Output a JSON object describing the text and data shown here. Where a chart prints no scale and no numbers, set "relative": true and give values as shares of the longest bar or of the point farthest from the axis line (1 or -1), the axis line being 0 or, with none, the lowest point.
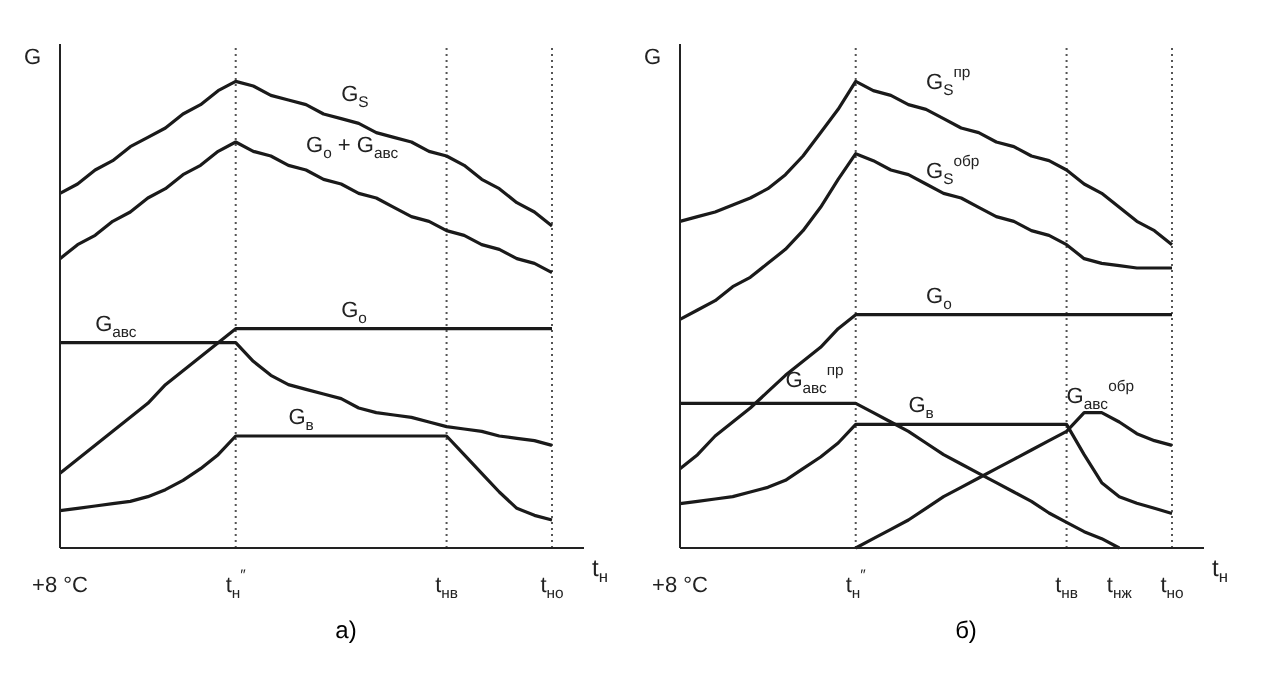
{
  "chart_data": [
    {
      "type": "line",
      "relative": true,
      "ylabel": "G",
      "xlabel": "t$_{н}$",
      "categories": [
        "+8 °C",
        null,
        null,
        null,
        null,
        null,
        null,
        null,
        null,
        null,
        "t$_{н}$$^{″}$",
        null,
        null,
        null,
        null,
        null,
        null,
        null,
        null,
        null,
        null,
        null,
        "t$_{нв}$",
        null,
        null,
        null,
        null,
        null,
        "t$_{но}$"
      ],
      "ref_lines": [
        {
          "axis": "x",
          "value": "t$_{н}$$^{″}$",
          "line_style": "dotted"
        },
        {
          "axis": "x",
          "value": "t$_{нв}$",
          "line_style": "dotted"
        },
        {
          "axis": "x",
          "value": "t$_{но}$",
          "line_style": "dotted"
        }
      ],
      "series": [
        {
          "name": "G$_{S}$",
          "color": "#1a1a1a",
          "values": [
            0.76,
            0.78,
            0.81,
            0.83,
            0.86,
            0.88,
            0.9,
            0.93,
            0.95,
            0.98,
            1,
            0.99,
            0.97,
            0.96,
            0.95,
            0.93,
            0.92,
            0.91,
            0.89,
            0.88,
            0.87,
            0.85,
            0.84,
            0.82,
            0.79,
            0.77,
            0.74,
            0.72,
            0.69
          ]
        },
        {
          "name": "G$_{о}$ + G$_{авс}$",
          "color": "#1a1a1a",
          "values": [
            0.62,
            0.65,
            0.67,
            0.7,
            0.72,
            0.75,
            0.77,
            0.8,
            0.82,
            0.85,
            0.87,
            0.85,
            0.84,
            0.82,
            0.81,
            0.79,
            0.78,
            0.76,
            0.75,
            0.73,
            0.71,
            0.7,
            0.68,
            0.67,
            0.65,
            0.64,
            0.62,
            0.61,
            0.59
          ]
        },
        {
          "name": "G$_{о}$",
          "color": "#1a1a1a",
          "values": [
            0.16,
            0.19,
            0.22,
            0.25,
            0.28,
            0.31,
            0.35,
            0.38,
            0.41,
            0.44,
            0.47,
            0.47,
            0.47,
            0.47,
            0.47,
            0.47,
            0.47,
            0.47,
            0.47,
            0.47,
            0.47,
            0.47,
            0.47,
            0.47,
            0.47,
            0.47,
            0.47,
            0.47,
            0.47
          ]
        },
        {
          "name": "G$_{авс}$",
          "color": "#1a1a1a",
          "values": [
            0.44,
            0.44,
            0.44,
            0.44,
            0.44,
            0.44,
            0.44,
            0.44,
            0.44,
            0.44,
            0.44,
            0.4,
            0.37,
            0.35,
            0.34,
            0.33,
            0.32,
            0.3,
            0.29,
            0.285,
            0.28,
            0.27,
            0.26,
            0.255,
            0.25,
            0.24,
            0.235,
            0.23,
            0.22
          ]
        },
        {
          "name": "G$_{в}$",
          "color": "#1a1a1a",
          "values": [
            0.08,
            0.085,
            0.09,
            0.095,
            0.1,
            0.11,
            0.125,
            0.145,
            0.17,
            0.2,
            0.24,
            0.24,
            0.24,
            0.24,
            0.24,
            0.24,
            0.24,
            0.24,
            0.24,
            0.24,
            0.24,
            0.24,
            0.24,
            0.2,
            0.16,
            0.12,
            0.085,
            0.07,
            0.06
          ]
        }
      ],
      "annotations": [
        "а)"
      ]
    },
    {
      "type": "line",
      "relative": true,
      "ylabel": "G",
      "xlabel": "t$_{н}$",
      "categories": [
        "+8 °C",
        null,
        null,
        null,
        null,
        null,
        null,
        null,
        null,
        null,
        "t$_{н}$$^{″}$",
        null,
        null,
        null,
        null,
        null,
        null,
        null,
        null,
        null,
        null,
        null,
        "t$_{нв}$",
        null,
        null,
        "t$_{нж}$",
        null,
        null,
        "t$_{но}$"
      ],
      "ref_lines": [
        {
          "axis": "x",
          "value": "t$_{н}$$^{″}$",
          "line_style": "dotted"
        },
        {
          "axis": "x",
          "value": "t$_{нв}$",
          "line_style": "dotted"
        },
        {
          "axis": "x",
          "value": "t$_{но}$",
          "line_style": "dotted"
        }
      ],
      "series": [
        {
          "name": "G$_{S}$$^{пр}$",
          "color": "#1a1a1a",
          "values": [
            0.7,
            0.71,
            0.72,
            0.735,
            0.75,
            0.77,
            0.8,
            0.84,
            0.89,
            0.94,
            1,
            0.98,
            0.97,
            0.95,
            0.94,
            0.92,
            0.9,
            0.89,
            0.87,
            0.86,
            0.84,
            0.83,
            0.81,
            0.78,
            0.76,
            0.73,
            0.7,
            0.68,
            0.65
          ]
        },
        {
          "name": "G$_{S}$$^{обр}$",
          "color": "#1a1a1a",
          "values": [
            0.49,
            0.51,
            0.53,
            0.56,
            0.58,
            0.61,
            0.64,
            0.68,
            0.73,
            0.79,
            0.845,
            0.83,
            0.81,
            0.8,
            0.78,
            0.76,
            0.75,
            0.73,
            0.71,
            0.7,
            0.68,
            0.67,
            0.65,
            0.62,
            0.61,
            0.605,
            0.6,
            0.6,
            0.6
          ]
        },
        {
          "name": "G$_{о}$",
          "color": "#1a1a1a",
          "values": [
            0.17,
            0.2,
            0.24,
            0.27,
            0.3,
            0.335,
            0.37,
            0.4,
            0.43,
            0.47,
            0.5,
            0.5,
            0.5,
            0.5,
            0.5,
            0.5,
            0.5,
            0.5,
            0.5,
            0.5,
            0.5,
            0.5,
            0.5,
            0.5,
            0.5,
            0.5,
            0.5,
            0.5,
            0.5
          ]
        },
        {
          "name": "G$_{авс}$$^{пр}$",
          "color": "#1a1a1a",
          "values": [
            0.31,
            0.31,
            0.31,
            0.31,
            0.31,
            0.31,
            0.31,
            0.31,
            0.31,
            0.31,
            0.31,
            0.29,
            0.27,
            0.25,
            0.225,
            0.2,
            0.18,
            0.16,
            0.14,
            0.12,
            0.1,
            0.075,
            0.055,
            0.035,
            0.02,
            0,
            null,
            null,
            null
          ]
        },
        {
          "name": "G$_{в}$",
          "color": "#1a1a1a",
          "values": [
            0.095,
            0.1,
            0.105,
            0.11,
            0.12,
            0.13,
            0.145,
            0.17,
            0.195,
            0.225,
            0.265,
            0.265,
            0.265,
            0.265,
            0.265,
            0.265,
            0.265,
            0.265,
            0.265,
            0.265,
            0.265,
            0.265,
            0.265,
            0.2,
            0.14,
            0.11,
            0.096,
            0.085,
            0.074
          ]
        },
        {
          "name": "G$_{авс}$$^{обр}$",
          "color": "#1a1a1a",
          "values": [
            null,
            null,
            null,
            null,
            null,
            null,
            null,
            null,
            null,
            null,
            0,
            0.02,
            0.04,
            0.06,
            0.085,
            0.11,
            0.13,
            0.15,
            0.17,
            0.19,
            0.21,
            0.23,
            0.25,
            0.29,
            0.29,
            0.27,
            0.245,
            0.23,
            0.22
          ]
        }
      ],
      "annotations": [
        "б)"
      ]
    }
  ]
}
